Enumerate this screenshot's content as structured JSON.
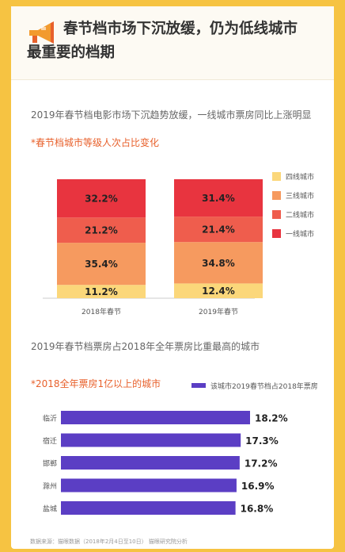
{
  "header": {
    "title_line1": "春节档市场下沉放缓，仍为低线城市",
    "title_line2": "最重要的档期"
  },
  "section1": {
    "title": "2019年春节档电影市场下沉趋势放缓，一线城市票房同比上涨明显",
    "subtitle": "*春节档城市等级人次占比变化"
  },
  "section2": {
    "title": "2019年春节档票房占2018年全年票房比重最高的城市",
    "subtitle": "*2018全年票房1亿以上的城市"
  },
  "footer": "数据来源：猫眼数据（2018年2月4日至10日）  猫眼研究院分析",
  "colors": {
    "tier4": "#fbd77a",
    "tier3": "#f69a5f",
    "tier2": "#ef5d4d",
    "tier1": "#e8343f",
    "bar": "#5b3ec4",
    "page_bg": "#f6c342"
  },
  "chart_data": [
    {
      "type": "bar",
      "stacked": true,
      "categories": [
        "2018年春节",
        "2019年春节"
      ],
      "series": [
        {
          "name": "四线城市",
          "values": [
            11.2,
            12.4
          ],
          "color": "#fbd77a"
        },
        {
          "name": "三线城市",
          "values": [
            35.4,
            34.8
          ],
          "color": "#f69a5f"
        },
        {
          "name": "二线城市",
          "values": [
            21.2,
            21.4
          ],
          "color": "#ef5d4d"
        },
        {
          "name": "一线城市",
          "values": [
            32.2,
            31.4
          ],
          "color": "#e8343f"
        }
      ],
      "value_suffix": "%",
      "legend_order": [
        "四线城市",
        "三线城市",
        "二线城市",
        "一线城市"
      ],
      "legend_position": "right",
      "ylim": [
        0,
        100
      ],
      "grid": false
    },
    {
      "type": "bar",
      "orientation": "horizontal",
      "categories": [
        "临沂",
        "宿迁",
        "邯郸",
        "滁州",
        "盐城"
      ],
      "series": [
        {
          "name": "该城市2019春节档占2018年票房",
          "values": [
            18.2,
            17.3,
            17.2,
            16.9,
            16.8
          ],
          "color": "#5b3ec4"
        }
      ],
      "value_suffix": "%",
      "legend_position": "top-right",
      "grid": false
    }
  ]
}
